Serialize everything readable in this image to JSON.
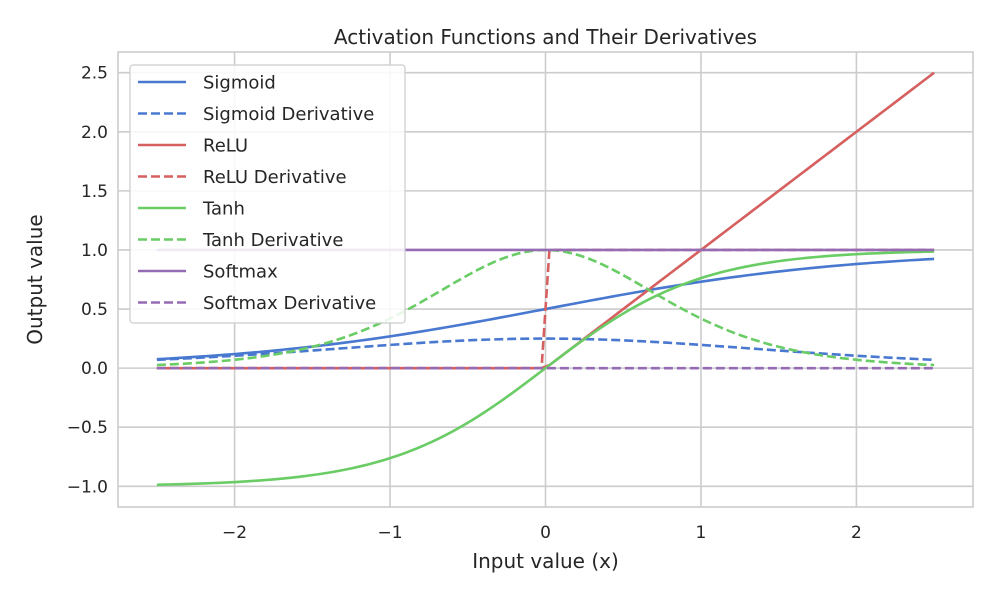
{
  "chart_data": {
    "type": "line",
    "title": "Activation Functions and Their Derivatives",
    "xlabel": "Input value (x)",
    "ylabel": "Output value",
    "xlim": [
      -2.75,
      2.75
    ],
    "ylim": [
      -1.175,
      2.675
    ],
    "xticks": [
      -2,
      -1,
      0,
      1,
      2
    ],
    "xtick_labels": [
      "−2",
      "−1",
      "0",
      "1",
      "2"
    ],
    "yticks": [
      -1.0,
      -0.5,
      0.0,
      0.5,
      1.0,
      1.5,
      2.0,
      2.5
    ],
    "ytick_labels": [
      "−1.0",
      "−0.5",
      "0.0",
      "0.5",
      "1.0",
      "1.5",
      "2.0",
      "2.5"
    ],
    "grid": true,
    "legend_position": "top-left",
    "x_domain": [
      -2.5,
      2.5
    ],
    "series": [
      {
        "name": "Sigmoid",
        "function": "sigmoid",
        "color": "#4878cf",
        "dash": "solid"
      },
      {
        "name": "Sigmoid Derivative",
        "function": "sigmoid_derivative",
        "color": "#4878cf",
        "dash": "dashed"
      },
      {
        "name": "ReLU",
        "function": "relu",
        "color": "#d65f5f",
        "dash": "solid"
      },
      {
        "name": "ReLU Derivative",
        "function": "relu_derivative",
        "color": "#d65f5f",
        "dash": "dashed"
      },
      {
        "name": "Tanh",
        "function": "tanh",
        "color": "#6acc65",
        "dash": "solid"
      },
      {
        "name": "Tanh Derivative",
        "function": "tanh_derivative",
        "color": "#6acc65",
        "dash": "dashed"
      },
      {
        "name": "Softmax",
        "function": "softmax",
        "color": "#956cb4",
        "dash": "solid"
      },
      {
        "name": "Softmax Derivative",
        "function": "softmax_derivative",
        "color": "#956cb4",
        "dash": "dashed"
      }
    ]
  }
}
